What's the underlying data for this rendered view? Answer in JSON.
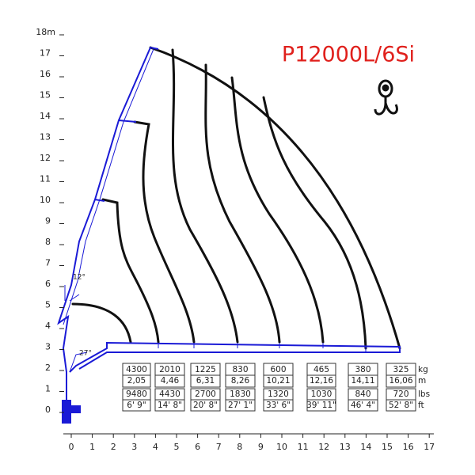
{
  "title": "P12000L/6Si",
  "axes": {
    "xticks": [
      0,
      1,
      2,
      3,
      4,
      5,
      6,
      7,
      8,
      9,
      10,
      11,
      12,
      13,
      14,
      15,
      16,
      17
    ],
    "yticks": [
      0,
      1,
      2,
      3,
      4,
      5,
      6,
      7,
      8,
      9,
      10,
      11,
      12,
      13,
      14,
      15,
      16,
      17,
      {
        "value": 18,
        "label": "18m"
      }
    ]
  },
  "angles": [
    "12°",
    "27°"
  ],
  "units": {
    "kg": "kg",
    "m": "m",
    "lbs": "lbs",
    "ft": "ft"
  },
  "table": [
    {
      "kg": "4300",
      "m": "2,05",
      "lbs": "9480",
      "ft": "6' 9\""
    },
    {
      "kg": "2010",
      "m": "4,46",
      "lbs": "4430",
      "ft": "14' 8\""
    },
    {
      "kg": "1225",
      "m": "6,31",
      "lbs": "2700",
      "ft": "20' 8\""
    },
    {
      "kg": "830",
      "m": "8,26",
      "lbs": "1830",
      "ft": "27' 1\""
    },
    {
      "kg": "600",
      "m": "10,21",
      "lbs": "1320",
      "ft": "33' 6\""
    },
    {
      "kg": "465",
      "m": "12,16",
      "lbs": "1030",
      "ft": "39' 11\""
    },
    {
      "kg": "380",
      "m": "14,11",
      "lbs": "840",
      "ft": "46' 4\""
    },
    {
      "kg": "325",
      "m": "16,06",
      "lbs": "720",
      "ft": "52' 8\""
    }
  ]
}
